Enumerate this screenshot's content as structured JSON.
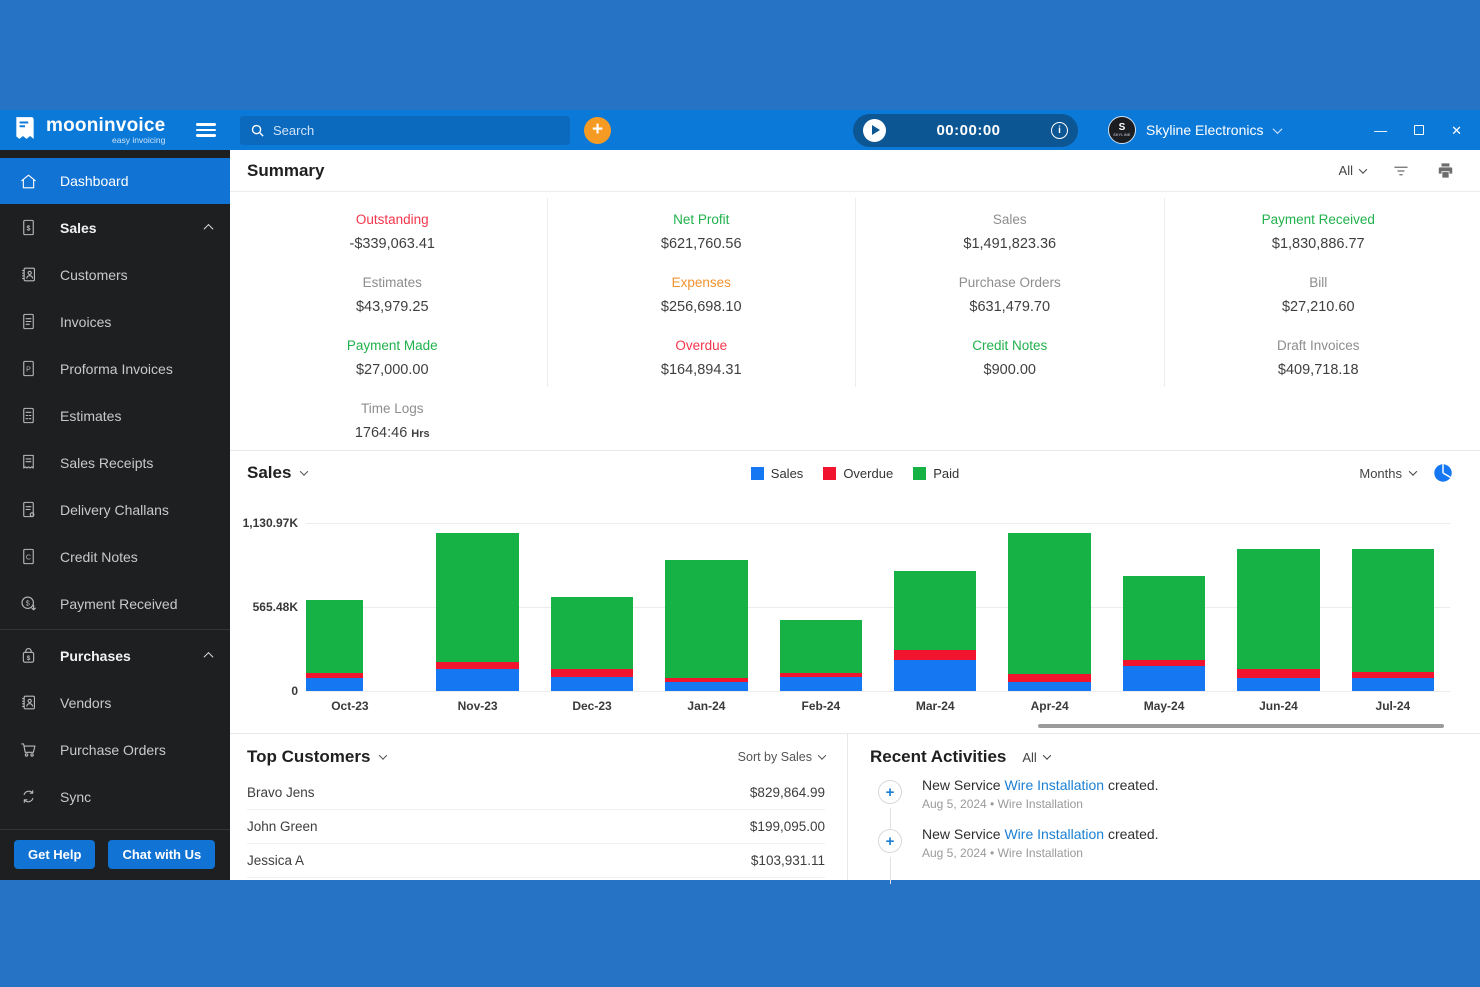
{
  "topbar": {
    "logo": {
      "name": "mooninvoice",
      "tagline": "easy invoicing"
    },
    "search": {
      "placeholder": "Search"
    },
    "add_button": "+",
    "timer": {
      "value": "00:00:00"
    },
    "company": {
      "name": "Skyline Electronics",
      "avatar_text": "SKYLINE",
      "avatar_initial": "S"
    },
    "window_controls": {
      "minimize": "—",
      "close": "✕"
    }
  },
  "sidebar": {
    "items": [
      {
        "label": "Dashboard",
        "icon": "home",
        "active": true
      },
      {
        "label": "Sales",
        "icon": "doc-dollar",
        "bold": true,
        "chevron": "up"
      },
      {
        "label": "Customers",
        "icon": "book-person"
      },
      {
        "label": "Invoices",
        "icon": "doc-lines"
      },
      {
        "label": "Proforma Invoices",
        "icon": "doc-p"
      },
      {
        "label": "Estimates",
        "icon": "doc-grid"
      },
      {
        "label": "Sales Receipts",
        "icon": "receipt"
      },
      {
        "label": "Delivery Challans",
        "icon": "doc-truck"
      },
      {
        "label": "Credit Notes",
        "icon": "doc-c"
      },
      {
        "label": "Payment Received",
        "icon": "coin-arrow",
        "divider_after": true
      },
      {
        "label": "Purchases",
        "icon": "bag-dollar",
        "bold": true,
        "chevron": "up"
      },
      {
        "label": "Vendors",
        "icon": "book-person"
      },
      {
        "label": "Purchase Orders",
        "icon": "cart"
      },
      {
        "label": "Sync",
        "icon": "sync"
      }
    ],
    "footer_buttons": [
      "Get Help",
      "Chat with Us"
    ]
  },
  "summary": {
    "title": "Summary",
    "range_label": "All",
    "stats": [
      {
        "label": "Outstanding",
        "value": "-$339,063.41",
        "color": "red"
      },
      {
        "label": "Net Profit",
        "value": "$621,760.56",
        "color": "green"
      },
      {
        "label": "Sales",
        "value": "$1,491,823.36",
        "color": "gray"
      },
      {
        "label": "Payment Received",
        "value": "$1,830,886.77",
        "color": "green"
      },
      {
        "label": "Estimates",
        "value": "$43,979.25",
        "color": "gray"
      },
      {
        "label": "Expenses",
        "value": "$256,698.10",
        "color": "orange"
      },
      {
        "label": "Purchase Orders",
        "value": "$631,479.70",
        "color": "gray"
      },
      {
        "label": "Bill",
        "value": "$27,210.60",
        "color": "gray"
      },
      {
        "label": "Payment Made",
        "value": "$27,000.00",
        "color": "green"
      },
      {
        "label": "Overdue",
        "value": "$164,894.31",
        "color": "red"
      },
      {
        "label": "Credit Notes",
        "value": "$900.00",
        "color": "green"
      },
      {
        "label": "Draft Invoices",
        "value": "$409,718.18",
        "color": "gray"
      }
    ],
    "time_logs": {
      "label": "Time Logs",
      "value": "1764:46",
      "unit": "Hrs"
    }
  },
  "sales_section": {
    "title": "Sales",
    "period_label": "Months"
  },
  "chart_data": {
    "type": "bar",
    "stacked": true,
    "title": "Sales",
    "categories": [
      "Oct-23",
      "Nov-23",
      "Dec-23",
      "Jan-24",
      "Feb-24",
      "Mar-24",
      "Apr-24",
      "May-24",
      "Jun-24",
      "Jul-24"
    ],
    "unit": "K (thousands of $)",
    "series": [
      {
        "name": "Sales",
        "color": "#1577f2",
        "values": [
          85,
          150,
          95,
          60,
          95,
          210,
          60,
          170,
          90,
          90
        ]
      },
      {
        "name": "Overdue",
        "color": "#f0142f",
        "values": [
          35,
          48,
          55,
          28,
          25,
          65,
          55,
          40,
          55,
          35
        ]
      },
      {
        "name": "Paid",
        "color": "#17b246",
        "values": [
          490,
          867,
          485,
          792,
          355,
          535,
          950,
          565,
          810,
          830
        ]
      }
    ],
    "totals": [
      610,
      1065,
      635,
      880,
      475,
      810,
      1065,
      775,
      955,
      955
    ],
    "y_ticks": [
      "1,130.97K",
      "565.48K",
      "0"
    ],
    "y_tick_values": [
      1130.97,
      565.48,
      0
    ],
    "ylim": [
      0,
      1200
    ],
    "grid": "horizontal",
    "legend_position": "top-center",
    "first_tick_clipped": true
  },
  "top_customers": {
    "title": "Top Customers",
    "sort_label": "Sort by Sales",
    "rows": [
      {
        "name": "Bravo Jens",
        "value": "$829,864.99"
      },
      {
        "name": "John Green",
        "value": "$199,095.00"
      },
      {
        "name": "Jessica A",
        "value": "$103,931.11"
      }
    ]
  },
  "recent_activities": {
    "title": "Recent Activities",
    "filter_label": "All",
    "items": [
      {
        "prefix": "New Service ",
        "link": "Wire Installation",
        "suffix": " created.",
        "meta": "Aug 5, 2024 • Wire Installation"
      },
      {
        "prefix": "New Service ",
        "link": "Wire Installation",
        "suffix": " created.",
        "meta": "Aug 5, 2024 • Wire Installation"
      }
    ]
  },
  "colors": {
    "letterbox_blue": "#2673c5",
    "topbar_blue": "#0b79d8",
    "accent_blue": "#1173d4",
    "orange": "#f59a23",
    "green": "#21b14c",
    "red": "#f4364c",
    "link_blue": "#1b7fd4"
  }
}
